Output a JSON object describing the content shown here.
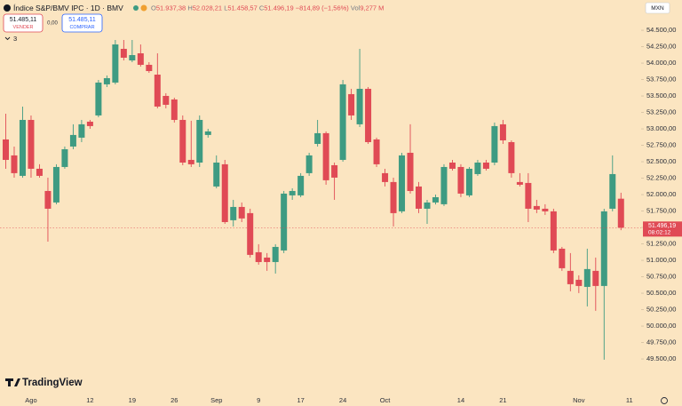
{
  "header": {
    "symbol": "Índice S&P/BMV IPC · 1D · BMV",
    "ohlc": [
      {
        "key": "O",
        "value": "51.937,38"
      },
      {
        "key": "H",
        "value": "52.028,21"
      },
      {
        "key": "L",
        "value": "51.458,57"
      },
      {
        "key": "C",
        "value": "51.496,19"
      }
    ],
    "change": "−814,89 (−1,56%)",
    "volume_key": "Vol",
    "volume": "9,277 M",
    "sell_price": "51.485,11",
    "sell_label": "VENDER",
    "spread": "0,00",
    "buy_price": "51.485,11",
    "buy_label": "COMPRAR",
    "indicators": "3",
    "currency": "MXN",
    "brand": "TradingView",
    "last_price_label": "51.496,19",
    "countdown": "08:02:12"
  },
  "chart_data": {
    "type": "candlestick",
    "up_color": "#3e9b82",
    "down_color": "#e04a55",
    "categories": [
      null,
      null,
      null,
      "Ago",
      null,
      null,
      null,
      null,
      null,
      null,
      "12",
      null,
      null,
      null,
      null,
      "19",
      null,
      null,
      null,
      null,
      "26",
      null,
      null,
      null,
      null,
      "Sep",
      null,
      null,
      null,
      null,
      "9",
      null,
      null,
      null,
      null,
      "17",
      null,
      null,
      null,
      null,
      "24",
      null,
      null,
      null,
      null,
      "Oct",
      null,
      null,
      null,
      null,
      null,
      null,
      null,
      null,
      "14",
      null,
      null,
      null,
      null,
      "21",
      null,
      null,
      null,
      null,
      null,
      null,
      null,
      null,
      "Nov",
      null,
      null,
      null,
      null,
      null,
      "11"
    ],
    "values": [
      [
        52839,
        53231,
        52393,
        52528
      ],
      [
        52596,
        52731,
        52258,
        52326
      ],
      [
        52285,
        53339,
        52258,
        53136
      ],
      [
        53136,
        53204,
        52258,
        52393
      ],
      [
        52393,
        52461,
        52258,
        52285
      ],
      [
        52055,
        52258,
        51285,
        51785
      ],
      [
        51880,
        52461,
        51853,
        52420
      ],
      [
        52420,
        52731,
        52393,
        52690
      ],
      [
        52731,
        53069,
        52690,
        52907
      ],
      [
        52866,
        53136,
        52798,
        53069
      ],
      [
        53109,
        53136,
        53001,
        53042
      ],
      [
        53204,
        53744,
        53177,
        53704
      ],
      [
        53677,
        53812,
        53636,
        53771
      ],
      [
        53704,
        54352,
        53677,
        54284
      ],
      [
        54217,
        54352,
        54041,
        54082
      ],
      [
        54041,
        54352,
        54014,
        54122
      ],
      [
        54149,
        54284,
        53947,
        53974
      ],
      [
        53974,
        54014,
        53852,
        53879
      ],
      [
        53825,
        54149,
        53312,
        53339
      ],
      [
        53501,
        53542,
        53312,
        53366
      ],
      [
        53447,
        53474,
        53096,
        53136
      ],
      [
        53136,
        53204,
        52447,
        52487
      ],
      [
        52528,
        53123,
        52420,
        52461
      ],
      [
        52487,
        53204,
        52420,
        53136
      ],
      [
        52907,
        53001,
        52866,
        52961
      ],
      [
        52123,
        52596,
        52096,
        52487
      ],
      [
        52461,
        52528,
        51555,
        51582
      ],
      [
        51610,
        51920,
        51515,
        51812
      ],
      [
        51812,
        51880,
        51582,
        51637
      ],
      [
        51718,
        51785,
        51042,
        51083
      ],
      [
        51123,
        51245,
        50934,
        50974
      ],
      [
        51042,
        51110,
        50840,
        50974
      ],
      [
        50974,
        51245,
        50799,
        51204
      ],
      [
        51150,
        52055,
        51110,
        52015
      ],
      [
        51988,
        52096,
        51920,
        52055
      ],
      [
        51988,
        52326,
        51961,
        52285
      ],
      [
        52326,
        52636,
        52285,
        52596
      ],
      [
        52771,
        53136,
        52731,
        52934
      ],
      [
        52934,
        52961,
        52150,
        52218
      ],
      [
        52447,
        52487,
        51920,
        52258
      ],
      [
        52528,
        53744,
        52501,
        53677
      ],
      [
        53528,
        53609,
        53136,
        53204
      ],
      [
        53069,
        54217,
        53028,
        53609
      ],
      [
        53609,
        53636,
        52771,
        52798
      ],
      [
        52839,
        52866,
        52420,
        52461
      ],
      [
        52326,
        52393,
        52123,
        52191
      ],
      [
        52191,
        52258,
        51515,
        51718
      ],
      [
        51745,
        52636,
        51718,
        52596
      ],
      [
        52636,
        53069,
        52015,
        52055
      ],
      [
        52123,
        52191,
        51718,
        51785
      ],
      [
        51785,
        51920,
        51555,
        51880
      ],
      [
        51880,
        52000,
        51850,
        51960
      ],
      [
        51853,
        52461,
        51826,
        52420
      ],
      [
        52487,
        52528,
        52366,
        52393
      ],
      [
        52420,
        52461,
        51961,
        52015
      ],
      [
        51988,
        52420,
        51961,
        52393
      ],
      [
        52312,
        52528,
        52285,
        52487
      ],
      [
        52487,
        52528,
        52366,
        52393
      ],
      [
        52487,
        53096,
        52447,
        53042
      ],
      [
        53069,
        53136,
        52771,
        52825
      ],
      [
        52798,
        52825,
        52258,
        52326
      ],
      [
        52191,
        52326,
        52123,
        52150
      ],
      [
        52177,
        52326,
        51582,
        51785
      ],
      [
        51826,
        51920,
        51718,
        51772
      ],
      [
        51785,
        51853,
        51691,
        51745
      ],
      [
        51745,
        51785,
        51110,
        51150
      ],
      [
        51177,
        51204,
        50840,
        50880
      ],
      [
        50840,
        51110,
        50529,
        50637
      ],
      [
        50704,
        50772,
        50502,
        50610
      ],
      [
        50596,
        51177,
        50299,
        50867
      ],
      [
        50840,
        51042,
        50232,
        50610
      ],
      [
        50610,
        51785,
        49489,
        51745
      ],
      [
        51785,
        52596,
        51745,
        52312
      ],
      [
        51937.38,
        52028.21,
        51458.57,
        51496.19
      ],
      null
    ],
    "ylim": [
      49014,
      54960
    ],
    "yticks": [
      {
        "value": 49500,
        "label": "49.500,00"
      },
      {
        "value": 49750,
        "label": "49.750,00"
      },
      {
        "value": 50000,
        "label": "50.000,00"
      },
      {
        "value": 50250,
        "label": "50.250,00"
      },
      {
        "value": 50500,
        "label": "50.500,00"
      },
      {
        "value": 50750,
        "label": "50.750,00"
      },
      {
        "value": 51000,
        "label": "51.000,00"
      },
      {
        "value": 51250,
        "label": "51.250,00"
      },
      {
        "value": 51500,
        "label": "51.500,00"
      },
      {
        "value": 51750,
        "label": "51.750,00"
      },
      {
        "value": 52000,
        "label": "52.000,00"
      },
      {
        "value": 52250,
        "label": "52.250,00"
      },
      {
        "value": 52500,
        "label": "52.500,00"
      },
      {
        "value": 52750,
        "label": "52.750,00"
      },
      {
        "value": 53000,
        "label": "53.000,00"
      },
      {
        "value": 53250,
        "label": "53.250,00"
      },
      {
        "value": 53500,
        "label": "53.500,00"
      },
      {
        "value": 53750,
        "label": "53.750,00"
      },
      {
        "value": 54000,
        "label": "54.000,00"
      },
      {
        "value": 54250,
        "label": "54.250,00"
      },
      {
        "value": 54500,
        "label": "54.500,00"
      }
    ]
  }
}
